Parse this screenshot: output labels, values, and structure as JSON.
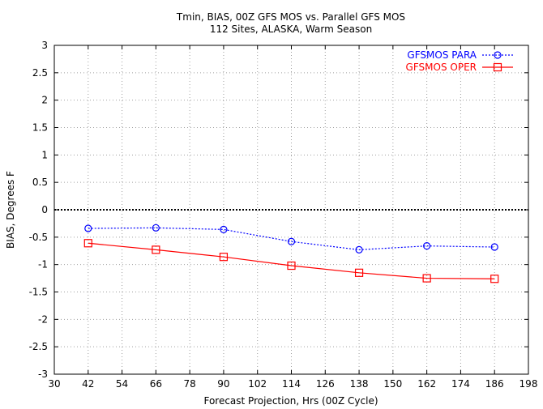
{
  "chart_data": {
    "type": "line",
    "title": "Tmin, BIAS, 00Z GFS MOS vs. Parallel GFS MOS",
    "subtitle": "112 Sites, ALASKA, Warm Season",
    "xlabel": "Forecast Projection, Hrs (00Z Cycle)",
    "ylabel": "BIAS, Degrees F",
    "xlim": [
      30,
      198
    ],
    "ylim": [
      -3,
      3
    ],
    "x_ticks": [
      30,
      42,
      54,
      66,
      78,
      90,
      102,
      114,
      126,
      138,
      150,
      162,
      174,
      186,
      198
    ],
    "y_ticks": [
      3,
      2.5,
      2,
      1.5,
      1,
      0.5,
      0,
      -0.5,
      -1,
      -1.5,
      -2,
      -2.5,
      -3
    ],
    "x_tick_labels": [
      "30",
      "42",
      "54",
      "66",
      "78",
      "90",
      "102",
      "114",
      "126",
      "138",
      "150",
      "162",
      "174",
      "186",
      "198"
    ],
    "y_tick_labels": [
      "3",
      "2.5",
      "2",
      "1.5",
      "1",
      "0.5",
      "0",
      "-0.5",
      "-1",
      "-1.5",
      "-2",
      "-2.5",
      "-3"
    ],
    "grid": true,
    "legend_position": "top-right",
    "reference_line": 0,
    "x": [
      42,
      66,
      90,
      114,
      138,
      162,
      186
    ],
    "series": [
      {
        "name": "GFSMOS PARA",
        "color": "#0000ff",
        "line_style": "dotted",
        "marker": "circle",
        "values": [
          -0.34,
          -0.33,
          -0.36,
          -0.58,
          -0.73,
          -0.66,
          -0.68
        ]
      },
      {
        "name": "GFSMOS OPER",
        "color": "#ff0000",
        "line_style": "solid",
        "marker": "square",
        "values": [
          -0.61,
          -0.73,
          -0.86,
          -1.02,
          -1.15,
          -1.25,
          -1.26
        ]
      }
    ]
  }
}
